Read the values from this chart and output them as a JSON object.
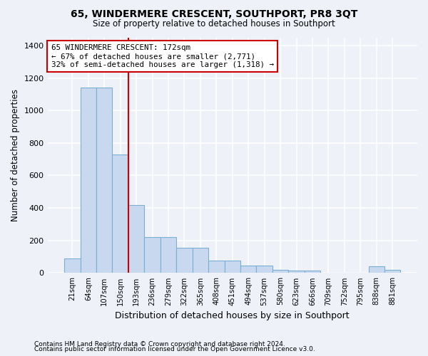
{
  "title": "65, WINDERMERE CRESCENT, SOUTHPORT, PR8 3QT",
  "subtitle": "Size of property relative to detached houses in Southport",
  "xlabel": "Distribution of detached houses by size in Southport",
  "ylabel": "Number of detached properties",
  "categories": [
    "21sqm",
    "64sqm",
    "107sqm",
    "150sqm",
    "193sqm",
    "236sqm",
    "279sqm",
    "322sqm",
    "365sqm",
    "408sqm",
    "451sqm",
    "494sqm",
    "537sqm",
    "580sqm",
    "623sqm",
    "666sqm",
    "709sqm",
    "752sqm",
    "795sqm",
    "838sqm",
    "881sqm"
  ],
  "values": [
    90,
    1140,
    1140,
    730,
    420,
    220,
    220,
    155,
    155,
    75,
    75,
    45,
    45,
    20,
    15,
    15,
    0,
    0,
    0,
    40,
    20
  ],
  "bar_color": "#c8d9ef",
  "bar_edge_color": "#7aafd4",
  "property_line_x": 3.5,
  "annotation_text": "65 WINDERMERE CRESCENT: 172sqm\n← 67% of detached houses are smaller (2,771)\n32% of semi-detached houses are larger (1,318) →",
  "annotation_box_color": "#ffffff",
  "annotation_box_edge_color": "#cc0000",
  "vline_color": "#cc0000",
  "footer_line1": "Contains HM Land Registry data © Crown copyright and database right 2024.",
  "footer_line2": "Contains public sector information licensed under the Open Government Licence v3.0.",
  "background_color": "#eef2f8",
  "plot_background_color": "#eef2f8",
  "ylim": [
    0,
    1450
  ],
  "yticks": [
    0,
    200,
    400,
    600,
    800,
    1000,
    1200,
    1400
  ],
  "grid_color": "#ffffff"
}
